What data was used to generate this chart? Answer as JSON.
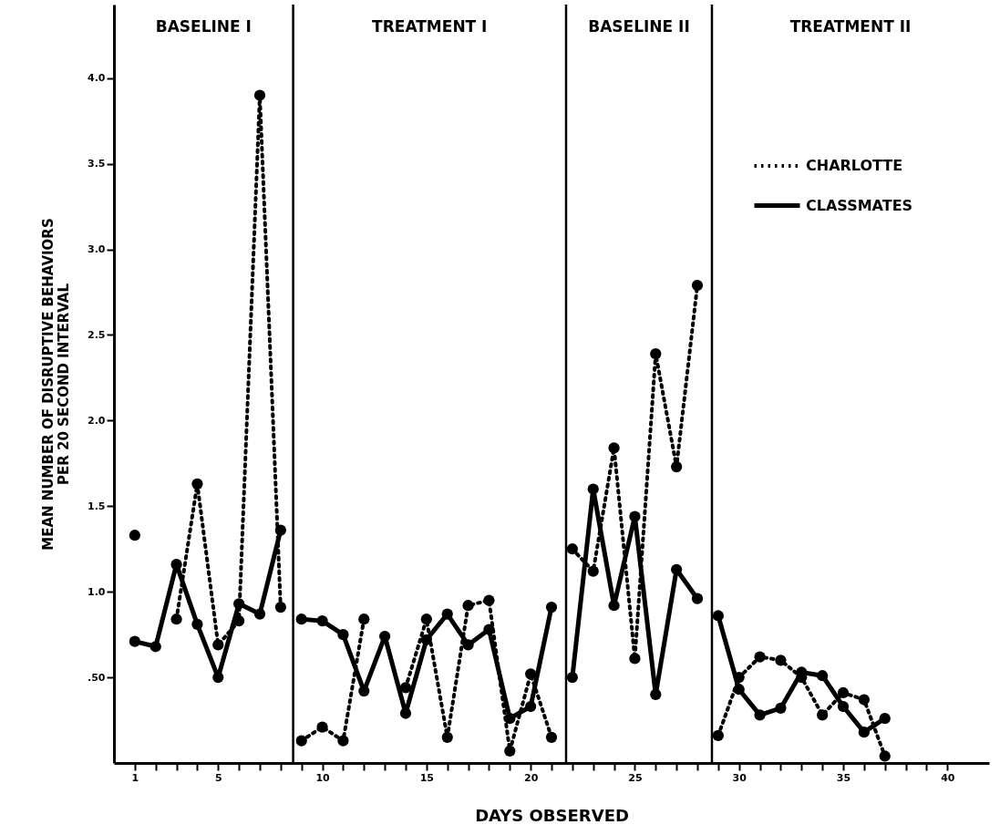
{
  "chart_data": {
    "type": "line",
    "xlabel": "DAYS OBSERVED",
    "ylabel": "MEAN NUMBER OF DISRUPTIVE BEHAVIORS\nPER 20 SECOND INTERVAL",
    "x": [
      1,
      2,
      3,
      4,
      5,
      6,
      7,
      8,
      9,
      10,
      11,
      12,
      13,
      14,
      15,
      16,
      17,
      18,
      19,
      20,
      21,
      22,
      23,
      24,
      25,
      26,
      27,
      28,
      29,
      30,
      31,
      32,
      33,
      34,
      35,
      36,
      37
    ],
    "series": [
      {
        "name": "CHARLOTTE",
        "color": "#000000",
        "line_style": "dotted",
        "values": [
          1.33,
          null,
          0.84,
          1.63,
          0.69,
          0.83,
          3.9,
          0.91,
          0.13,
          0.21,
          0.13,
          0.84,
          null,
          0.44,
          0.84,
          0.15,
          0.92,
          0.95,
          0.07,
          0.52,
          0.15,
          1.25,
          1.12,
          1.84,
          0.61,
          2.39,
          1.73,
          2.79,
          0.16,
          0.5,
          0.62,
          0.6,
          0.5,
          0.28,
          0.41,
          0.37,
          0.04
        ]
      },
      {
        "name": "CLASSMATES",
        "color": "#000000",
        "line_style": "solid",
        "values": [
          0.71,
          0.68,
          1.16,
          0.81,
          0.5,
          0.93,
          0.87,
          1.36,
          0.84,
          0.83,
          0.75,
          0.42,
          0.74,
          0.29,
          0.72,
          0.87,
          0.69,
          0.78,
          0.26,
          0.33,
          0.91,
          0.5,
          1.6,
          0.92,
          1.44,
          0.4,
          1.13,
          0.96,
          0.86,
          0.43,
          0.28,
          0.32,
          0.53,
          0.51,
          0.33,
          0.18,
          0.26
        ]
      }
    ],
    "xlim": [
      0,
      42
    ],
    "xticks": [
      1,
      {
        "value": 2,
        "label": null
      },
      {
        "value": 3,
        "label": null
      },
      {
        "value": 4,
        "label": null
      },
      5,
      {
        "value": 6,
        "label": null
      },
      {
        "value": 7,
        "label": null
      },
      {
        "value": 8,
        "label": null
      },
      {
        "value": 9,
        "label": null
      },
      10,
      {
        "value": 11,
        "label": null
      },
      {
        "value": 12,
        "label": null
      },
      {
        "value": 13,
        "label": null
      },
      {
        "value": 14,
        "label": null
      },
      15,
      {
        "value": 16,
        "label": null
      },
      {
        "value": 17,
        "label": null
      },
      {
        "value": 18,
        "label": null
      },
      {
        "value": 19,
        "label": null
      },
      20,
      {
        "value": 21,
        "label": null
      },
      {
        "value": 22,
        "label": null
      },
      {
        "value": 23,
        "label": null
      },
      {
        "value": 24,
        "label": null
      },
      25,
      {
        "value": 26,
        "label": null
      },
      {
        "value": 27,
        "label": null
      },
      {
        "value": 28,
        "label": null
      },
      {
        "value": 29,
        "label": null
      },
      30,
      {
        "value": 31,
        "label": null
      },
      {
        "value": 32,
        "label": null
      },
      {
        "value": 33,
        "label": null
      },
      {
        "value": 34,
        "label": null
      },
      35,
      {
        "value": 36,
        "label": null
      },
      {
        "value": 37,
        "label": null
      },
      {
        "value": 38,
        "label": null
      },
      {
        "value": 39,
        "label": null
      },
      40
    ],
    "ylim": [
      0,
      4.43
    ],
    "yticks": [
      {
        "value": 0.5,
        "label": ".50"
      },
      {
        "value": 1,
        "label": "1.0"
      },
      {
        "value": 1.5,
        "label": "1.5"
      },
      {
        "value": 2,
        "label": "2.0"
      },
      {
        "value": 2.5,
        "label": "2.5"
      },
      {
        "value": 3,
        "label": "3.0"
      },
      {
        "value": 3.5,
        "label": "3.5"
      },
      {
        "value": 4,
        "label": "4.0"
      }
    ],
    "ref_lines": [
      {
        "axis": "x",
        "value": 8.6
      },
      {
        "axis": "x",
        "value": 21.7
      },
      {
        "axis": "x",
        "value": 28.7
      }
    ],
    "annotations": [
      "BASELINE I",
      "TREATMENT I",
      "BASELINE II",
      "TREATMENT II"
    ],
    "marker": "circle",
    "legend": "top right"
  }
}
